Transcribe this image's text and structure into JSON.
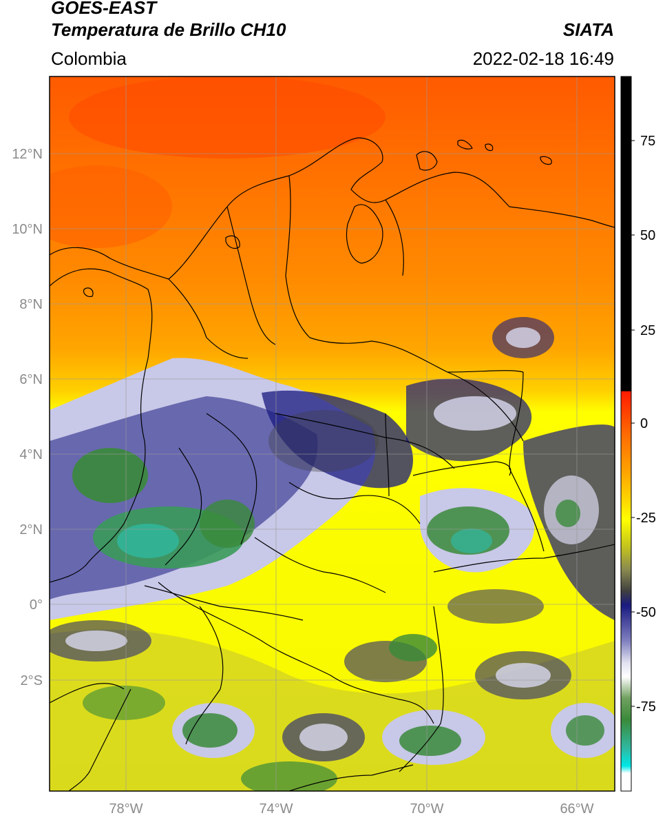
{
  "header": {
    "satellite": "GOES-EAST",
    "product": "Temperatura de Brillo CH10",
    "organization": "SIATA",
    "region": "Colombia",
    "timestamp": "2022-02-18 16:49"
  },
  "axes": {
    "lat_ticks": [
      "12°N",
      "10°N",
      "8°N",
      "6°N",
      "4°N",
      "2°N",
      "0°",
      "2°S"
    ],
    "lon_ticks": [
      "78°W",
      "74°W",
      "70°W",
      "66°W"
    ]
  },
  "colorbar": {
    "ticks": [
      "75",
      "50",
      "25",
      "0",
      "-25",
      "-50",
      "-75"
    ],
    "colors": {
      "black": "#000000",
      "red": "#ff1a00",
      "orange": "#ff8c00",
      "yellow": "#ffff00",
      "olive": "#b8b820",
      "darkgray": "#404040",
      "navy": "#1a1a80",
      "lavender": "#c8c8e8",
      "white": "#ffffff",
      "green": "#3a8a3a",
      "teal": "#30b8a0",
      "cyan": "#00e8e8"
    }
  }
}
